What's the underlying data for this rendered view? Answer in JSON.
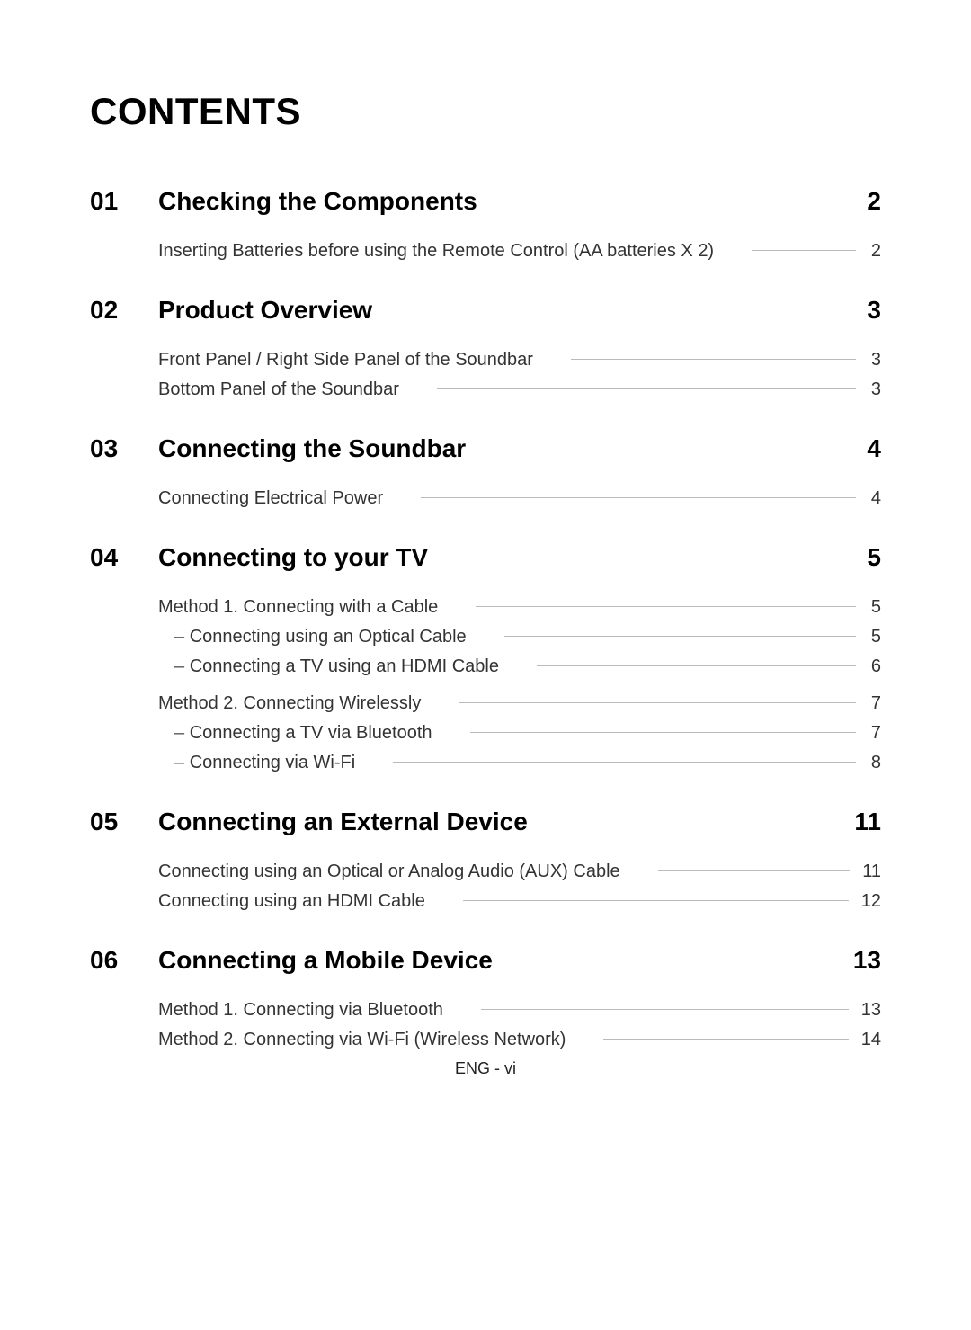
{
  "title": "CONTENTS",
  "footer": "ENG - vi",
  "colors": {
    "text": "#000000",
    "subtext": "#333333",
    "leader": "#bbbbbb",
    "background": "#ffffff"
  },
  "typography": {
    "title_fontsize": 42,
    "section_fontsize": 28,
    "item_fontsize": 20,
    "footer_fontsize": 18
  },
  "sections": [
    {
      "num": "01",
      "title": "Checking the Components",
      "page": "2",
      "items": [
        {
          "label": "Inserting Batteries before using the Remote Control (AA batteries X 2)",
          "page": "2",
          "sub": false
        }
      ]
    },
    {
      "num": "02",
      "title": "Product Overview",
      "page": "3",
      "items": [
        {
          "label": "Front Panel / Right Side Panel of the Soundbar",
          "page": "3",
          "sub": false
        },
        {
          "label": "Bottom Panel of the Soundbar",
          "page": "3",
          "sub": false
        }
      ]
    },
    {
      "num": "03",
      "title": "Connecting the Soundbar",
      "page": "4",
      "items": [
        {
          "label": "Connecting Electrical Power",
          "page": "4",
          "sub": false
        }
      ]
    },
    {
      "num": "04",
      "title": "Connecting to your TV",
      "page": "5",
      "items": [
        {
          "label": "Method 1. Connecting with a Cable",
          "page": "5",
          "sub": false
        },
        {
          "label": "Connecting using an Optical Cable",
          "page": "5",
          "sub": true
        },
        {
          "label": "Connecting a TV using an HDMI Cable",
          "page": "6",
          "sub": true
        },
        {
          "label": "Method 2. Connecting Wirelessly",
          "page": "7",
          "sub": false,
          "gap": true
        },
        {
          "label": "Connecting a TV via Bluetooth",
          "page": "7",
          "sub": true
        },
        {
          "label": "Connecting via Wi-Fi",
          "page": "8",
          "sub": true
        }
      ]
    },
    {
      "num": "05",
      "title": "Connecting an External Device",
      "page": "11",
      "items": [
        {
          "label": "Connecting using an Optical or Analog Audio (AUX) Cable",
          "page": "11",
          "sub": false
        },
        {
          "label": "Connecting using an HDMI Cable",
          "page": "12",
          "sub": false
        }
      ]
    },
    {
      "num": "06",
      "title": "Connecting a Mobile Device",
      "page": "13",
      "items": [
        {
          "label": "Method 1. Connecting via Bluetooth",
          "page": "13",
          "sub": false
        },
        {
          "label": "Method 2. Connecting via Wi-Fi (Wireless Network)",
          "page": "14",
          "sub": false
        }
      ]
    }
  ]
}
